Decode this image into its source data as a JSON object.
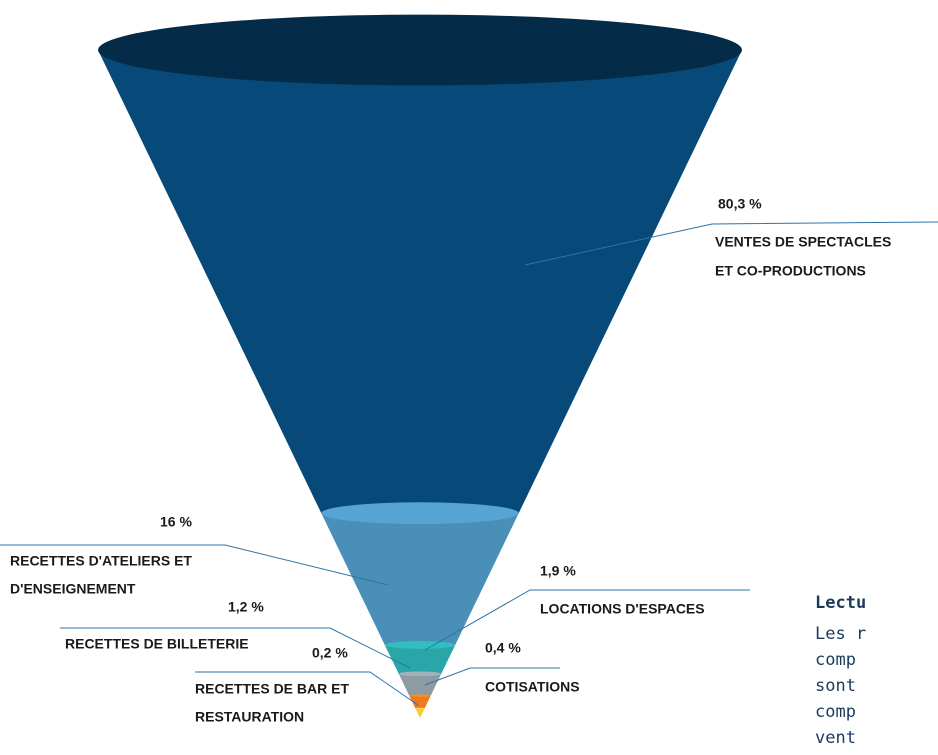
{
  "chart_data": {
    "type": "funnel",
    "categories": [
      [
        "VENTES DE SPECTACLES",
        "ET CO-PRODUCTIONS"
      ],
      [
        "RECETTES D'ATELIERS ET",
        "D'ENSEIGNEMENT"
      ],
      [
        "LOCATIONS D'ESPACES"
      ],
      [
        "RECETTES DE BILLETERIE"
      ],
      [
        "COTISATIONS"
      ],
      [
        "RECETTES DE BAR ET",
        "RESTAURATION"
      ]
    ],
    "values": [
      80.3,
      16,
      1.9,
      1.2,
      0.4,
      0.2
    ],
    "value_labels": [
      "80,3 %",
      "16 %",
      "1,9 %",
      "1,2 %",
      "0,4 %",
      "0,2 %"
    ],
    "colors": [
      "#074a7a",
      "#4a8fb8",
      "#2aa5a8",
      "#8d9ba3",
      "#f07a1e",
      "#fbc93d"
    ],
    "note": {
      "title": "Lectu",
      "lines": [
        "Les r",
        "comp",
        "sont",
        "comp",
        "vent"
      ]
    }
  }
}
